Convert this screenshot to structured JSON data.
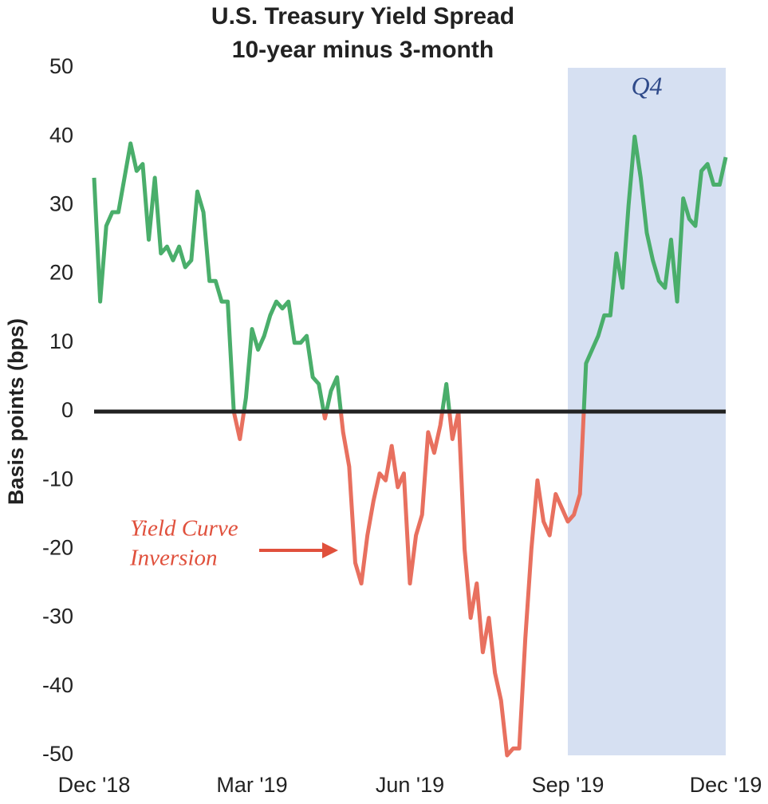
{
  "chart_data": {
    "type": "line",
    "title": "U.S. Treasury Yield Spread",
    "subtitle": "10-year minus 3-month",
    "y_label": "Basis points (bps)",
    "categories": [
      "Dec '18",
      null,
      null,
      null,
      null,
      null,
      null,
      null,
      null,
      null,
      null,
      null,
      null,
      null,
      null,
      null,
      null,
      null,
      null,
      null,
      null,
      null,
      null,
      null,
      null,
      null,
      "Mar '19",
      null,
      null,
      null,
      null,
      null,
      null,
      null,
      null,
      null,
      null,
      null,
      null,
      null,
      null,
      null,
      null,
      null,
      null,
      null,
      null,
      null,
      null,
      null,
      null,
      null,
      "Jun '19",
      null,
      null,
      null,
      null,
      null,
      null,
      null,
      null,
      null,
      null,
      null,
      null,
      null,
      null,
      null,
      null,
      null,
      null,
      null,
      null,
      null,
      null,
      null,
      null,
      null,
      "Sep '19",
      null,
      null,
      null,
      null,
      null,
      null,
      null,
      null,
      null,
      null,
      null,
      null,
      null,
      null,
      null,
      null,
      null,
      null,
      null,
      null,
      null,
      null,
      null,
      null,
      null,
      "Dec '19"
    ],
    "values": [
      34,
      16,
      27,
      29,
      29,
      34,
      39,
      35,
      36,
      25,
      34,
      23,
      24,
      22,
      24,
      21,
      22,
      32,
      29,
      19,
      19,
      16,
      16,
      0,
      -4,
      2,
      12,
      9,
      11,
      14,
      16,
      15,
      16,
      10,
      10,
      11,
      5,
      4,
      -1,
      3,
      5,
      -3,
      -8,
      -22,
      -25,
      -18,
      -13,
      -9,
      -10,
      -5,
      -11,
      -9,
      -25,
      -18,
      -15,
      -3,
      -6,
      -2,
      4,
      -4,
      0,
      -20,
      -30,
      -25,
      -35,
      -30,
      -38,
      -42,
      -50,
      -49,
      -49,
      -33,
      -20,
      -10,
      -16,
      -18,
      -12,
      -14,
      -16,
      -15,
      -12,
      7,
      9,
      11,
      14,
      14,
      23,
      18,
      30,
      40,
      34,
      26,
      22,
      19,
      18,
      25,
      16,
      31,
      28,
      27,
      35,
      36,
      33,
      33,
      37
    ],
    "color": "#4aae6b",
    "negative_color": "#e8705f",
    "baseline": {
      "value": 0,
      "color": "#222222"
    },
    "ylim": [
      -50,
      50
    ],
    "yticks": [
      -50,
      -40,
      -30,
      -20,
      -10,
      0,
      10,
      20,
      30,
      40,
      50
    ],
    "shaded_region": {
      "from": "Sep '19",
      "to": "Dec '19",
      "label": "Q4",
      "color": "#d6e0f2",
      "label_color": "#2f4a8a"
    },
    "annotation": {
      "lines": [
        "Yield Curve",
        "Inversion"
      ],
      "color": "#e0503c"
    }
  }
}
